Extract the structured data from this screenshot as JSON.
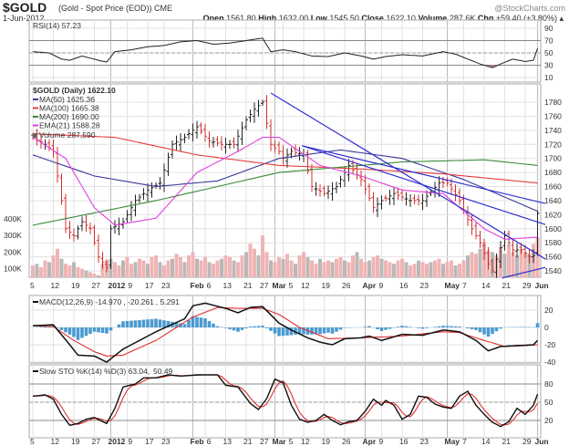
{
  "header": {
    "symbol": "$GOLD",
    "description": "(Gold - Spot Price (EOD)) CME",
    "date": "1-Jun-2012",
    "watermark": "@StockCharts.com",
    "open_label": "Open",
    "open": "1561.80",
    "high_label": "High",
    "high": "1632.00",
    "low_label": "Low",
    "low": "1545.50",
    "close_label": "Close",
    "close": "1622.10",
    "volume_label": "Volume",
    "volume": "287.6K",
    "chg_label": "Chg",
    "chg": "+59.40 (+3.80%)",
    "chg_icon": "up-triangle"
  },
  "chart_data": {
    "type": "line",
    "x_ticks": [
      {
        "i": 0,
        "t": "5"
      },
      {
        "i": 5,
        "t": "12"
      },
      {
        "i": 10,
        "t": "19"
      },
      {
        "i": 15,
        "t": "27"
      },
      {
        "i": 19,
        "t": "2012",
        "bold": true
      },
      {
        "i": 23,
        "t": "9"
      },
      {
        "i": 28,
        "t": "17"
      },
      {
        "i": 32,
        "t": "23"
      },
      {
        "i": 39,
        "t": "Feb",
        "bold": true
      },
      {
        "i": 42,
        "t": "6"
      },
      {
        "i": 47,
        "t": "13"
      },
      {
        "i": 52,
        "t": "21"
      },
      {
        "i": 56,
        "t": "27"
      },
      {
        "i": 59,
        "t": "Mar",
        "bold": true
      },
      {
        "i": 61,
        "t": "5"
      },
      {
        "i": 66,
        "t": "12"
      },
      {
        "i": 71,
        "t": "19"
      },
      {
        "i": 76,
        "t": "26"
      },
      {
        "i": 81,
        "t": "Apr",
        "bold": true
      },
      {
        "i": 85,
        "t": "9"
      },
      {
        "i": 90,
        "t": "16"
      },
      {
        "i": 95,
        "t": "23"
      },
      {
        "i": 101,
        "t": "May",
        "bold": true
      },
      {
        "i": 105,
        "t": "7"
      },
      {
        "i": 110,
        "t": "14"
      },
      {
        "i": 115,
        "t": "21"
      },
      {
        "i": 120,
        "t": "29"
      },
      {
        "i": 123,
        "t": "Jun",
        "bold": true
      }
    ],
    "n_days": 124,
    "rsi": {
      "label": "RSI(14) 57.23",
      "yticks": [
        90,
        70,
        50,
        30,
        10
      ],
      "ylim": [
        10,
        90
      ],
      "points": [
        [
          0,
          52
        ],
        [
          4,
          50
        ],
        [
          7,
          40
        ],
        [
          9,
          38
        ],
        [
          12,
          45
        ],
        [
          16,
          38
        ],
        [
          18,
          35
        ],
        [
          20,
          52
        ],
        [
          24,
          55
        ],
        [
          28,
          60
        ],
        [
          32,
          62
        ],
        [
          36,
          68
        ],
        [
          40,
          70
        ],
        [
          44,
          64
        ],
        [
          48,
          66
        ],
        [
          52,
          70
        ],
        [
          56,
          74
        ],
        [
          58,
          52
        ],
        [
          61,
          55
        ],
        [
          64,
          52
        ],
        [
          68,
          45
        ],
        [
          72,
          44
        ],
        [
          76,
          50
        ],
        [
          80,
          45
        ],
        [
          83,
          40
        ],
        [
          86,
          44
        ],
        [
          90,
          47
        ],
        [
          95,
          45
        ],
        [
          100,
          52
        ],
        [
          103,
          48
        ],
        [
          106,
          40
        ],
        [
          109,
          32
        ],
        [
          112,
          26
        ],
        [
          114,
          32
        ],
        [
          117,
          40
        ],
        [
          120,
          36
        ],
        [
          122,
          38
        ],
        [
          123,
          57.23
        ]
      ]
    },
    "price": {
      "label": "$GOLD (Daily) 1622.10",
      "yticks": [
        1780,
        1760,
        1740,
        1720,
        1700,
        1680,
        1660,
        1640,
        1620,
        1600,
        1580,
        1560,
        1540
      ],
      "ylim": [
        1535,
        1795
      ],
      "close_points": [
        [
          0,
          1730
        ],
        [
          3,
          1720
        ],
        [
          5,
          1710
        ],
        [
          7,
          1640
        ],
        [
          8,
          1600
        ],
        [
          10,
          1590
        ],
        [
          12,
          1610
        ],
        [
          14,
          1600
        ],
        [
          16,
          1560
        ],
        [
          18,
          1545
        ],
        [
          19,
          1600
        ],
        [
          22,
          1610
        ],
        [
          25,
          1640
        ],
        [
          28,
          1655
        ],
        [
          31,
          1665
        ],
        [
          34,
          1720
        ],
        [
          37,
          1730
        ],
        [
          40,
          1745
        ],
        [
          43,
          1725
        ],
        [
          46,
          1720
        ],
        [
          49,
          1720
        ],
        [
          52,
          1755
        ],
        [
          54,
          1770
        ],
        [
          56,
          1780
        ],
        [
          58,
          1720
        ],
        [
          60,
          1710
        ],
        [
          61,
          1700
        ],
        [
          63,
          1710
        ],
        [
          66,
          1705
        ],
        [
          68,
          1660
        ],
        [
          71,
          1650
        ],
        [
          74,
          1660
        ],
        [
          77,
          1690
        ],
        [
          80,
          1670
        ],
        [
          83,
          1630
        ],
        [
          85,
          1640
        ],
        [
          88,
          1650
        ],
        [
          92,
          1640
        ],
        [
          95,
          1640
        ],
        [
          99,
          1665
        ],
        [
          101,
          1665
        ],
        [
          104,
          1640
        ],
        [
          107,
          1600
        ],
        [
          109,
          1580
        ],
        [
          111,
          1550
        ],
        [
          112,
          1540
        ],
        [
          115,
          1590
        ],
        [
          117,
          1570
        ],
        [
          119,
          1570
        ],
        [
          121,
          1560
        ],
        [
          122,
          1562
        ],
        [
          123,
          1622
        ]
      ],
      "series": [
        {
          "name": "MA(50)",
          "value": "1625.36",
          "label": "MA(50) 1625.36",
          "color": "#3a3a9a",
          "points": [
            [
              0,
              1705
            ],
            [
              15,
              1675
            ],
            [
              30,
              1660
            ],
            [
              45,
              1668
            ],
            [
              60,
              1700
            ],
            [
              75,
              1712
            ],
            [
              90,
              1700
            ],
            [
              105,
              1670
            ],
            [
              123,
              1625
            ]
          ]
        },
        {
          "name": "MA(100)",
          "value": "1665.38",
          "label": "MA(100) 1665.38",
          "color": "#e83c3c",
          "points": [
            [
              0,
              1735
            ],
            [
              20,
              1730
            ],
            [
              40,
              1705
            ],
            [
              60,
              1690
            ],
            [
              80,
              1685
            ],
            [
              100,
              1678
            ],
            [
              123,
              1665
            ]
          ]
        },
        {
          "name": "MA(200)",
          "value": "1690.00",
          "label": "MA(200) 1690.00",
          "color": "#3a8a3a",
          "points": [
            [
              0,
              1605
            ],
            [
              30,
              1640
            ],
            [
              60,
              1680
            ],
            [
              90,
              1695
            ],
            [
              110,
              1698
            ],
            [
              123,
              1690
            ]
          ]
        },
        {
          "name": "EMA(21)",
          "value": "1588.28",
          "label": "EMA(21) 1588.28",
          "color": "#e040e0",
          "points": [
            [
              0,
              1730
            ],
            [
              8,
              1700
            ],
            [
              15,
              1630
            ],
            [
              20,
              1605
            ],
            [
              30,
              1615
            ],
            [
              40,
              1680
            ],
            [
              50,
              1710
            ],
            [
              56,
              1730
            ],
            [
              60,
              1730
            ],
            [
              70,
              1690
            ],
            [
              80,
              1675
            ],
            [
              90,
              1655
            ],
            [
              100,
              1650
            ],
            [
              110,
              1600
            ],
            [
              115,
              1585
            ],
            [
              123,
              1588
            ]
          ]
        }
      ],
      "trendlines": [
        [
          [
            58,
            1793
          ],
          [
            124.9,
            1557
          ]
        ],
        [
          [
            65.6,
            1718
          ],
          [
            124.9,
            1636
          ]
        ],
        [
          [
            65.6,
            1718
          ],
          [
            124.9,
            1606
          ]
        ],
        [
          [
            114.4,
            1530
          ],
          [
            124.9,
            1545
          ]
        ]
      ]
    },
    "volume": {
      "label": "Volume 287,590",
      "yticks": [
        {
          "v": 400,
          "t": "400K"
        },
        {
          "v": 300,
          "t": "300K"
        },
        {
          "v": 200,
          "t": "200K"
        },
        {
          "v": 100,
          "t": "100K"
        }
      ],
      "values_k": [
        120,
        130,
        110,
        150,
        140,
        180,
        220,
        160,
        130,
        120,
        140,
        110,
        100,
        90,
        80,
        70,
        60,
        130,
        150,
        160,
        140,
        120,
        150,
        170,
        130,
        140,
        160,
        150,
        130,
        170,
        180,
        140,
        120,
        150,
        160,
        190,
        170,
        140,
        180,
        200,
        160,
        150,
        170,
        140,
        130,
        150,
        160,
        180,
        170,
        150,
        140,
        180,
        200,
        250,
        220,
        180,
        300,
        200,
        150,
        140,
        170,
        160,
        190,
        150,
        130,
        180,
        200,
        170,
        150,
        130,
        160,
        140,
        150,
        140,
        160,
        170,
        150,
        140,
        180,
        200,
        160,
        140,
        150,
        170,
        180,
        160,
        150,
        140,
        130,
        150,
        160,
        140,
        120,
        130,
        150,
        140,
        130,
        140,
        150,
        160,
        130,
        140,
        150,
        120,
        130,
        150,
        180,
        200,
        190,
        220,
        260,
        210,
        200,
        180,
        230,
        190,
        240,
        200,
        180,
        220,
        200,
        190,
        250,
        288
      ]
    },
    "macd": {
      "label": "MACD(12,26,9) -14.970",
      "signal_value": ", -20.261",
      "hist_value": ", 5.291",
      "yticks": [
        20,
        0,
        -20,
        -40
      ],
      "ylim": [
        -42,
        30
      ],
      "macd_points": [
        [
          0,
          2
        ],
        [
          5,
          3
        ],
        [
          9,
          -20
        ],
        [
          11,
          -32
        ],
        [
          15,
          -33
        ],
        [
          18,
          -40
        ],
        [
          22,
          -25
        ],
        [
          30,
          -5
        ],
        [
          37,
          10
        ],
        [
          39,
          25
        ],
        [
          42,
          28
        ],
        [
          47,
          22
        ],
        [
          50,
          17
        ],
        [
          53,
          23
        ],
        [
          56,
          24
        ],
        [
          60,
          5
        ],
        [
          63,
          -3
        ],
        [
          67,
          -12
        ],
        [
          70,
          -17
        ],
        [
          73,
          -20
        ],
        [
          76,
          -13
        ],
        [
          80,
          -12
        ],
        [
          82,
          -10
        ],
        [
          85,
          -15
        ],
        [
          90,
          -8
        ],
        [
          95,
          -9
        ],
        [
          100,
          -3
        ],
        [
          104,
          -5
        ],
        [
          108,
          -15
        ],
        [
          111,
          -27
        ],
        [
          114,
          -22
        ],
        [
          118,
          -21
        ],
        [
          122,
          -20
        ],
        [
          123,
          -15
        ]
      ],
      "signal_points": [
        [
          0,
          2
        ],
        [
          5,
          1
        ],
        [
          10,
          -15
        ],
        [
          15,
          -28
        ],
        [
          18,
          -33
        ],
        [
          22,
          -32
        ],
        [
          30,
          -15
        ],
        [
          39,
          12
        ],
        [
          45,
          23
        ],
        [
          50,
          22
        ],
        [
          56,
          22
        ],
        [
          60,
          15
        ],
        [
          65,
          0
        ],
        [
          72,
          -13
        ],
        [
          80,
          -12
        ],
        [
          90,
          -10
        ],
        [
          100,
          -5
        ],
        [
          104,
          -6
        ],
        [
          110,
          -15
        ],
        [
          115,
          -22
        ],
        [
          120,
          -21
        ],
        [
          123,
          -20
        ]
      ]
    },
    "sto": {
      "label": "Slow STO %K(14) %D(3) 63.04,",
      "d_value": " 50.49",
      "yticks": [
        80,
        50,
        20
      ],
      "ylim": [
        0,
        100
      ],
      "k_points": [
        [
          0,
          60
        ],
        [
          3,
          62
        ],
        [
          5,
          55
        ],
        [
          7,
          30
        ],
        [
          9,
          12
        ],
        [
          11,
          15
        ],
        [
          13,
          22
        ],
        [
          15,
          25
        ],
        [
          17,
          18
        ],
        [
          18,
          15
        ],
        [
          20,
          40
        ],
        [
          22,
          75
        ],
        [
          25,
          80
        ],
        [
          27,
          90
        ],
        [
          30,
          90
        ],
        [
          33,
          95
        ],
        [
          36,
          93
        ],
        [
          40,
          95
        ],
        [
          45,
          95
        ],
        [
          47,
          78
        ],
        [
          50,
          75
        ],
        [
          53,
          48
        ],
        [
          55,
          38
        ],
        [
          57,
          56
        ],
        [
          59,
          88
        ],
        [
          61,
          82
        ],
        [
          63,
          45
        ],
        [
          65,
          22
        ],
        [
          67,
          17
        ],
        [
          69,
          20
        ],
        [
          71,
          30
        ],
        [
          73,
          20
        ],
        [
          75,
          13
        ],
        [
          77,
          18
        ],
        [
          79,
          20
        ],
        [
          81,
          35
        ],
        [
          83,
          55
        ],
        [
          85,
          45
        ],
        [
          86,
          53
        ],
        [
          88,
          45
        ],
        [
          90,
          22
        ],
        [
          92,
          30
        ],
        [
          94,
          60
        ],
        [
          96,
          58
        ],
        [
          98,
          47
        ],
        [
          100,
          42
        ],
        [
          102,
          40
        ],
        [
          104,
          60
        ],
        [
          106,
          68
        ],
        [
          108,
          45
        ],
        [
          110,
          30
        ],
        [
          112,
          17
        ],
        [
          114,
          10
        ],
        [
          116,
          18
        ],
        [
          118,
          40
        ],
        [
          120,
          30
        ],
        [
          122,
          45
        ],
        [
          123,
          63.04
        ]
      ]
    }
  }
}
